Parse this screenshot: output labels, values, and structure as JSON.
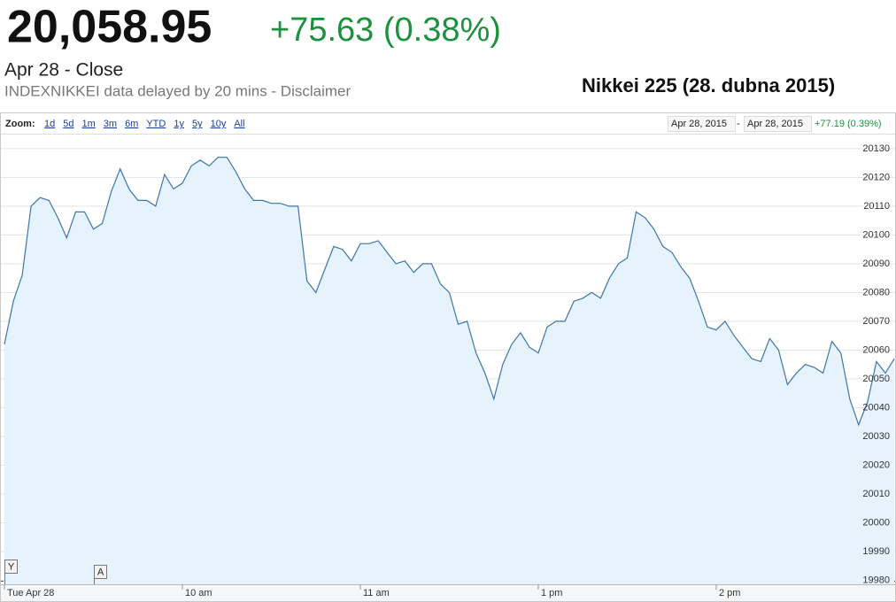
{
  "header": {
    "price": "20,058.95",
    "change": "+75.63 (0.38%)",
    "date": "Apr 28 - Close",
    "source": "INDEXNIKKEI data delayed by 20 mins - Disclaimer",
    "caption": "Nikkei 225 (28. dubna 2015)"
  },
  "toolbar": {
    "zoom_label": "Zoom:",
    "zoom_options": [
      "1d",
      "5d",
      "1m",
      "3m",
      "6m",
      "YTD",
      "1y",
      "5y",
      "10y",
      "All"
    ],
    "range_start": "Apr 28, 2015",
    "range_separator": "-",
    "range_end": "Apr 28, 2015",
    "range_change": "+77.19 (0.39%)"
  },
  "chart_data": {
    "type": "area",
    "color": "#3d76ab",
    "fill": "#e6f3fc",
    "categories": [
      "Tue Apr 28",
      null,
      null,
      null,
      null,
      null,
      null,
      null,
      null,
      null,
      null,
      null,
      null,
      null,
      null,
      null,
      null,
      null,
      null,
      null,
      "10 am",
      null,
      null,
      null,
      null,
      null,
      null,
      null,
      null,
      null,
      null,
      null,
      null,
      null,
      null,
      null,
      null,
      null,
      null,
      null,
      "11 am",
      null,
      null,
      null,
      null,
      null,
      null,
      null,
      null,
      null,
      null,
      null,
      null,
      null,
      null,
      null,
      null,
      null,
      null,
      null,
      "1 pm",
      null,
      null,
      null,
      null,
      null,
      null,
      null,
      null,
      null,
      null,
      null,
      null,
      null,
      null,
      null,
      null,
      null,
      null,
      null,
      "2 pm",
      null,
      null,
      null,
      null,
      null,
      null,
      null,
      null,
      null,
      null,
      null,
      null,
      null,
      null,
      null,
      null,
      null,
      null,
      null,
      null
    ],
    "values": [
      20062,
      20077,
      20086,
      20110,
      20113,
      20112,
      20106,
      20099,
      20108,
      20108,
      20102,
      20104,
      20115,
      20123,
      20116,
      20112,
      20112,
      20110,
      20121,
      20116,
      20118,
      20124,
      20126,
      20124,
      20127,
      20127,
      20122,
      20116,
      20112,
      20112,
      20111,
      20111,
      20110,
      20110,
      20084,
      20080,
      20088,
      20096,
      20095,
      20091,
      20097,
      20097,
      20098,
      20094,
      20090,
      20091,
      20087,
      20090,
      20090,
      20083,
      20080,
      20069,
      20070,
      20059,
      20052,
      20043,
      20055,
      20062,
      20066,
      20061,
      20059,
      20068,
      20070,
      20070,
      20077,
      20078,
      20080,
      20078,
      20085,
      20090,
      20092,
      20108,
      20106,
      20102,
      20096,
      20094,
      20089,
      20085,
      20077,
      20068,
      20067,
      20070,
      20065,
      20061,
      20057,
      20056,
      20064,
      20060,
      20048,
      20052,
      20055,
      20054,
      20052,
      20063,
      20059,
      20043,
      20034,
      20042,
      20056,
      20052,
      20057
    ],
    "ylim": [
      19978.6,
      20134.9
    ],
    "yticks": [
      19980,
      19990,
      20000,
      20010,
      20020,
      20030,
      20040,
      20050,
      20060,
      20070,
      20080,
      20090,
      20100,
      20110,
      20120,
      20130
    ],
    "grid": true,
    "flags": [
      "Y",
      "A"
    ]
  }
}
